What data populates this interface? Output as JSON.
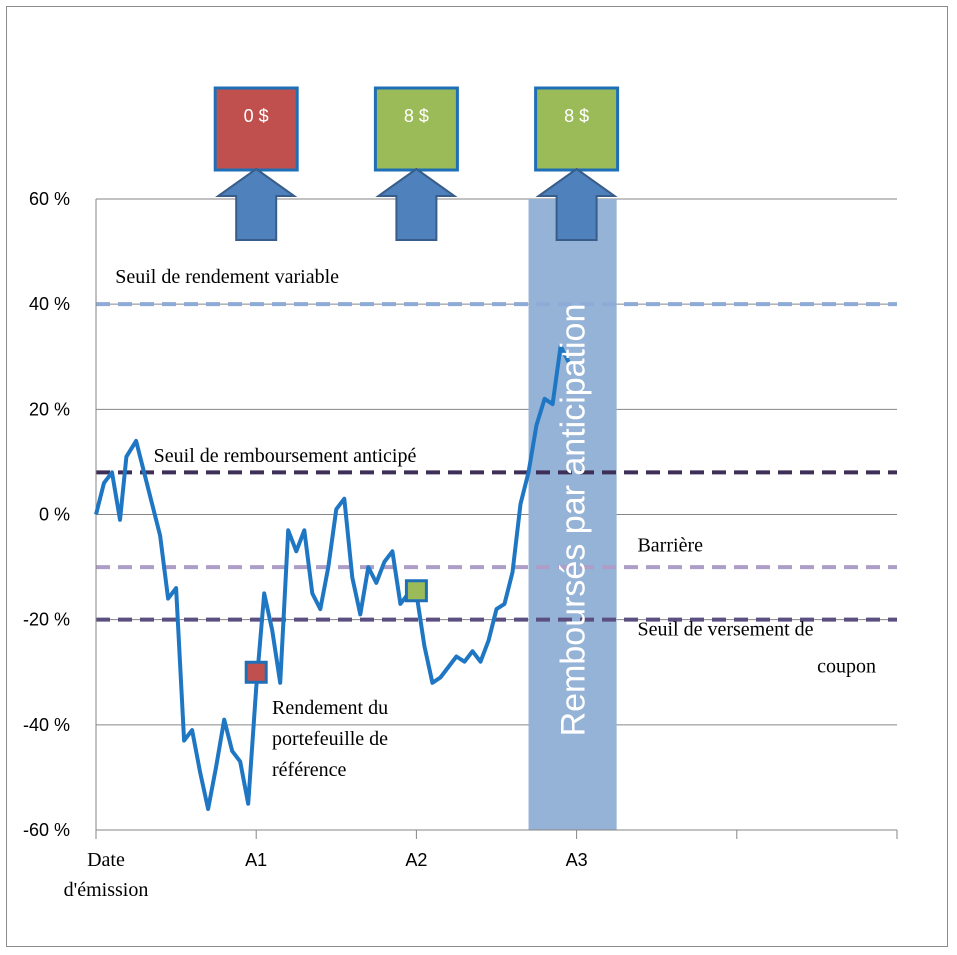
{
  "chart_data": {
    "type": "line",
    "y_ticks": [
      "60 %",
      "40 %",
      "20 %",
      "0 %",
      "-20 %",
      "-40 %",
      "-60 %"
    ],
    "ylim": [
      -60,
      60
    ],
    "xlim": [
      0,
      5
    ],
    "x_ticks": [
      {
        "x": 0,
        "lines": [
          "Date",
          "d'émission"
        ]
      },
      {
        "x": 1,
        "lines": [
          "A1"
        ]
      },
      {
        "x": 2,
        "lines": [
          "A2"
        ]
      },
      {
        "x": 3,
        "lines": [
          "A3"
        ]
      }
    ],
    "grid": true,
    "series": [
      {
        "name": "Rendement du portefeuille de référence",
        "color": "#1f77c4",
        "points": [
          [
            0.0,
            0
          ],
          [
            0.05,
            6
          ],
          [
            0.1,
            8
          ],
          [
            0.15,
            -1
          ],
          [
            0.19,
            11
          ],
          [
            0.25,
            14
          ],
          [
            0.3,
            8
          ],
          [
            0.35,
            2
          ],
          [
            0.4,
            -4
          ],
          [
            0.45,
            -16
          ],
          [
            0.5,
            -14
          ],
          [
            0.55,
            -43
          ],
          [
            0.6,
            -41
          ],
          [
            0.65,
            -49
          ],
          [
            0.7,
            -56
          ],
          [
            0.75,
            -48
          ],
          [
            0.8,
            -39
          ],
          [
            0.85,
            -45
          ],
          [
            0.9,
            -47
          ],
          [
            0.95,
            -55
          ],
          [
            1.0,
            -33
          ],
          [
            1.05,
            -15
          ],
          [
            1.1,
            -22
          ],
          [
            1.15,
            -32
          ],
          [
            1.2,
            -3
          ],
          [
            1.25,
            -7
          ],
          [
            1.3,
            -3
          ],
          [
            1.35,
            -15
          ],
          [
            1.4,
            -18
          ],
          [
            1.45,
            -10
          ],
          [
            1.5,
            1
          ],
          [
            1.55,
            3
          ],
          [
            1.6,
            -12
          ],
          [
            1.65,
            -19
          ],
          [
            1.7,
            -10
          ],
          [
            1.75,
            -13
          ],
          [
            1.8,
            -9
          ],
          [
            1.85,
            -7
          ],
          [
            1.9,
            -17
          ],
          [
            1.95,
            -15
          ],
          [
            2.0,
            -15
          ],
          [
            2.05,
            -25
          ],
          [
            2.1,
            -32
          ],
          [
            2.15,
            -31
          ],
          [
            2.2,
            -29
          ],
          [
            2.25,
            -27
          ],
          [
            2.3,
            -28
          ],
          [
            2.35,
            -26
          ],
          [
            2.4,
            -28
          ],
          [
            2.45,
            -24
          ],
          [
            2.5,
            -18
          ],
          [
            2.55,
            -17
          ],
          [
            2.6,
            -11
          ],
          [
            2.65,
            2
          ],
          [
            2.7,
            8
          ],
          [
            2.75,
            17
          ],
          [
            2.8,
            22
          ],
          [
            2.85,
            21
          ],
          [
            2.9,
            32
          ],
          [
            2.95,
            29
          ]
        ]
      }
    ],
    "lines": [
      {
        "label": "Seuil de rendement variable",
        "y": 40,
        "color": "#8eaad6",
        "label_x": 0.12,
        "label_y": 44
      },
      {
        "label": "Seuil de remboursement anticipé",
        "y": 8,
        "color": "#3d2f57",
        "label_x": 0.36,
        "label_y": 10
      },
      {
        "label": "Barrière",
        "y": -10,
        "color": "#ad9ec8",
        "label_x": 3.38,
        "label_y": -7
      },
      {
        "label": "Seuil de versement de",
        "y": -20,
        "color": "#5b4f80",
        "label_x": 3.38,
        "label_y": -23
      }
    ],
    "coupon_label_line2": "coupon",
    "series_label_lines": [
      "Rendement du",
      "portefeuille de",
      "référence"
    ],
    "markers": [
      {
        "x": 1.0,
        "y": -30,
        "color": "#c0504d"
      },
      {
        "x": 2.0,
        "y": -14.5,
        "color": "#9bbb59"
      }
    ],
    "payments": [
      {
        "x": 1.0,
        "label": "0 $",
        "color": "#c0504d"
      },
      {
        "x": 2.0,
        "label": "8 $",
        "color": "#9bbb59"
      },
      {
        "x": 3.0,
        "label": "8 $",
        "color": "#9bbb59"
      }
    ],
    "band": {
      "x_from": 2.7,
      "x_to": 3.25,
      "label": "Remboursés par anticipation",
      "color": "#95b3d7"
    },
    "colors": {
      "arrow": "#4f81bd",
      "arrow_border": "#385d8a",
      "box_border": "#1f6fb7",
      "grid": "#868686"
    }
  }
}
